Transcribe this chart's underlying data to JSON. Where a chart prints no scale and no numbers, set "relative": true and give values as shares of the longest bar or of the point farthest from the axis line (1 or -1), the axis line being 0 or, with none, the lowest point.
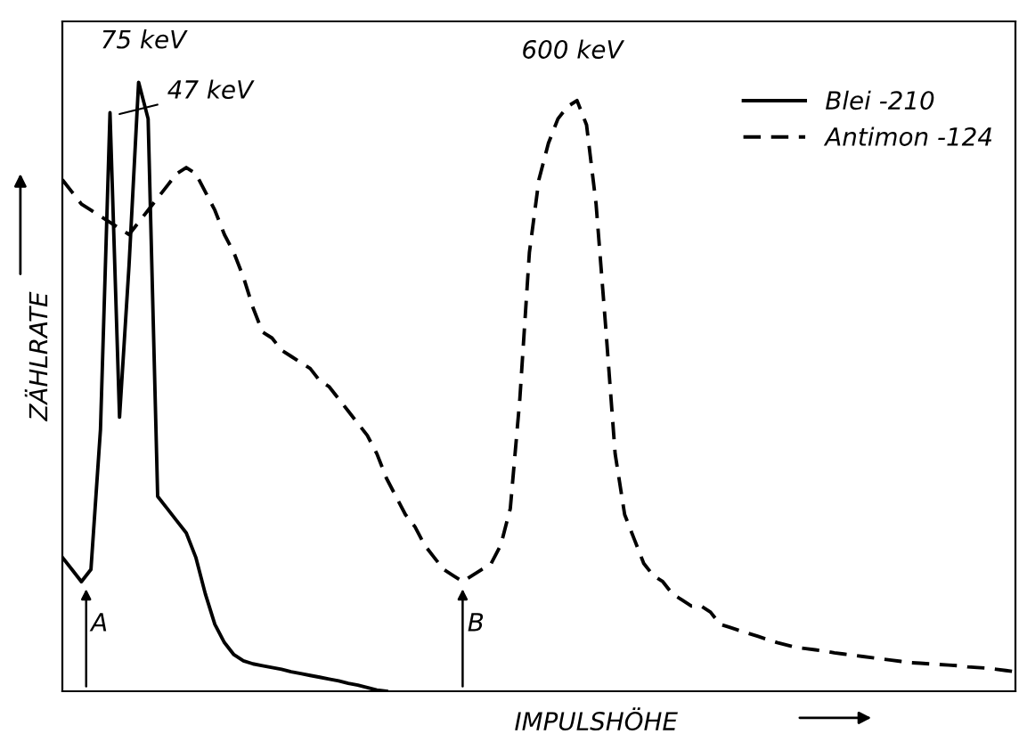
{
  "chart_data": {
    "type": "line",
    "relative": true,
    "xlabel": "IMPULSHÖHE",
    "ylabel": "ZÄHLRATE",
    "tick_labels": false,
    "legend": "top right",
    "marker": "none",
    "categories": [
      null,
      null,
      null,
      null,
      null,
      null,
      null,
      null,
      null,
      null,
      null,
      null,
      null,
      null,
      null,
      null,
      null,
      null,
      null,
      null,
      null,
      null,
      null,
      null,
      null,
      null,
      null,
      null,
      null,
      null,
      null,
      null,
      null,
      null,
      null,
      null,
      null,
      null,
      null,
      null,
      null,
      null,
      null,
      null,
      null,
      null,
      null,
      null,
      null,
      null,
      null,
      null,
      null,
      null,
      null,
      null,
      null,
      null,
      null,
      null,
      null,
      null,
      null,
      null,
      null,
      null,
      null,
      null,
      null,
      null,
      null,
      null,
      null,
      null,
      null,
      null,
      null,
      null,
      null,
      null,
      null,
      null,
      null,
      null,
      null,
      null,
      null,
      null,
      null,
      null,
      null,
      null,
      null,
      null,
      null,
      null,
      null,
      null,
      null,
      null,
      null
    ],
    "series": [
      {
        "name": "Blei -210",
        "color": "#000000",
        "line_style": "solid",
        "values": [
          0.22,
          0.2,
          0.18,
          0.2,
          0.43,
          0.95,
          0.45,
          0.7,
          1,
          0.94,
          0.32,
          0.3,
          0.28,
          0.26,
          0.22,
          0.16,
          0.11,
          0.08,
          0.06,
          0.05,
          0.045,
          0.042,
          0.039,
          0.036,
          0.032,
          0.029,
          0.026,
          0.023,
          0.02,
          0.017,
          0.013,
          0.01,
          0.006,
          0.002,
          0,
          null,
          null,
          null,
          null,
          null,
          null,
          null,
          null,
          null,
          null,
          null,
          null,
          null,
          null,
          null,
          null,
          null,
          null,
          null,
          null,
          null,
          null,
          null,
          null,
          null,
          null,
          null,
          null,
          null,
          null,
          null,
          null,
          null,
          null,
          null,
          null,
          null,
          null,
          null,
          null,
          null,
          null,
          null,
          null,
          null,
          null,
          null,
          null,
          null,
          null,
          null,
          null,
          null,
          null,
          null,
          null,
          null,
          null,
          null,
          null,
          null,
          null,
          null,
          null,
          null,
          null
        ]
      },
      {
        "name": "Antimon -124",
        "color": "#000000",
        "line_style": "dashed",
        "values": [
          0.84,
          0.82,
          0.8,
          0.79,
          0.78,
          0.77,
          0.76,
          0.75,
          0.77,
          0.79,
          0.81,
          0.83,
          0.85,
          0.86,
          0.85,
          0.82,
          0.79,
          0.75,
          0.72,
          0.68,
          0.63,
          0.59,
          0.58,
          0.56,
          0.55,
          0.54,
          0.53,
          0.51,
          0.5,
          0.48,
          0.46,
          0.44,
          0.42,
          0.39,
          0.35,
          0.32,
          0.29,
          0.27,
          0.24,
          0.22,
          0.2,
          0.19,
          0.18,
          0.19,
          0.2,
          0.21,
          0.24,
          0.3,
          0.48,
          0.72,
          0.84,
          0.9,
          0.94,
          0.96,
          0.97,
          0.93,
          0.8,
          0.6,
          0.39,
          0.29,
          0.25,
          0.21,
          0.19,
          0.18,
          0.16,
          0.15,
          0.14,
          0.14,
          0.13,
          0.11,
          0.105,
          0.1,
          0.095,
          0.09,
          0.085,
          0.08,
          0.076,
          0.072,
          0.07,
          0.068,
          0.066,
          0.063,
          0.061,
          0.059,
          0.057,
          0.055,
          0.053,
          0.051,
          0.049,
          0.047,
          0.046,
          0.045,
          0.044,
          0.043,
          0.042,
          0.04,
          0.039,
          0.038,
          0.036,
          0.034,
          0.032
        ]
      }
    ],
    "annotations": [
      "75 keV",
      "47 keV",
      "600 keV",
      "A",
      "B"
    ]
  }
}
